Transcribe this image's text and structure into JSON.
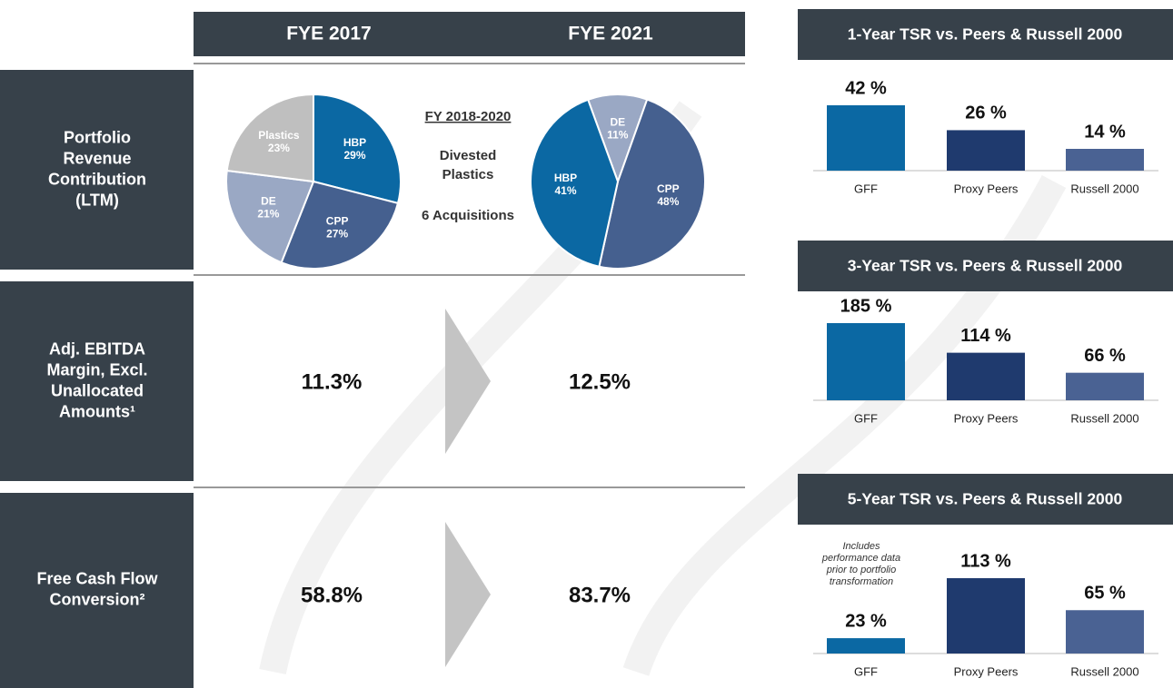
{
  "table": {
    "columns": [
      "FYE 2017",
      "FYE 2021"
    ],
    "rows": [
      {
        "label": [
          "Portfolio",
          "Revenue",
          "Contribution",
          "(LTM)"
        ]
      },
      {
        "label": [
          "Adj. EBITDA",
          "Margin, Excl.",
          "Unallocated",
          "Amounts¹"
        ],
        "values": [
          "11.3%",
          "12.5%"
        ]
      },
      {
        "label": [
          "Free Cash Flow",
          "Conversion²"
        ],
        "values": [
          "58.8%",
          "83.7%"
        ]
      }
    ],
    "middle": {
      "heading": "FY 2018-2020",
      "lines": [
        "Divested",
        "Plastics",
        "6 Acquisitions"
      ]
    }
  },
  "chart_data": [
    {
      "type": "pie",
      "categories": [
        "HBP",
        "CPP",
        "DE",
        "Plastics"
      ],
      "values": [
        29,
        27,
        21,
        23
      ],
      "value_labels": [
        "29%",
        "27%",
        "21%",
        "23%"
      ],
      "colors": [
        "#0b68a3",
        "#45608f",
        "#9aa8c4",
        "#bfbfbf"
      ]
    },
    {
      "type": "pie",
      "categories": [
        "DE",
        "CPP",
        "HBP"
      ],
      "values": [
        11,
        48,
        41
      ],
      "value_labels": [
        "11%",
        "48%",
        "41%"
      ],
      "colors": [
        "#9aa8c4",
        "#45608f",
        "#0b68a3"
      ]
    },
    {
      "type": "bar",
      "title": "1-Year TSR vs. Peers & Russell 2000",
      "categories": [
        "GFF",
        "Proxy Peers",
        "Russell 2000"
      ],
      "values": [
        42,
        26,
        14
      ],
      "value_labels": [
        "42 %",
        "26 %",
        "14 %"
      ],
      "colors": [
        "#0b68a3",
        "#1f3a6e",
        "#4a6293"
      ]
    },
    {
      "type": "bar",
      "title": "3-Year TSR vs. Peers & Russell 2000",
      "categories": [
        "GFF",
        "Proxy Peers",
        "Russell 2000"
      ],
      "values": [
        185,
        114,
        66
      ],
      "value_labels": [
        "185 %",
        "114 %",
        "66 %"
      ],
      "colors": [
        "#0b68a3",
        "#1f3a6e",
        "#4a6293"
      ]
    },
    {
      "type": "bar",
      "title": "5-Year TSR vs. Peers & Russell 2000",
      "categories": [
        "GFF",
        "Proxy Peers",
        "Russell 2000"
      ],
      "values": [
        23,
        113,
        65
      ],
      "value_labels": [
        "23 %",
        "113 %",
        "65 %"
      ],
      "colors": [
        "#0b68a3",
        "#1f3a6e",
        "#4a6293"
      ],
      "annotation": [
        "Includes",
        "performance data",
        "prior to portfolio",
        "transformation"
      ]
    }
  ]
}
